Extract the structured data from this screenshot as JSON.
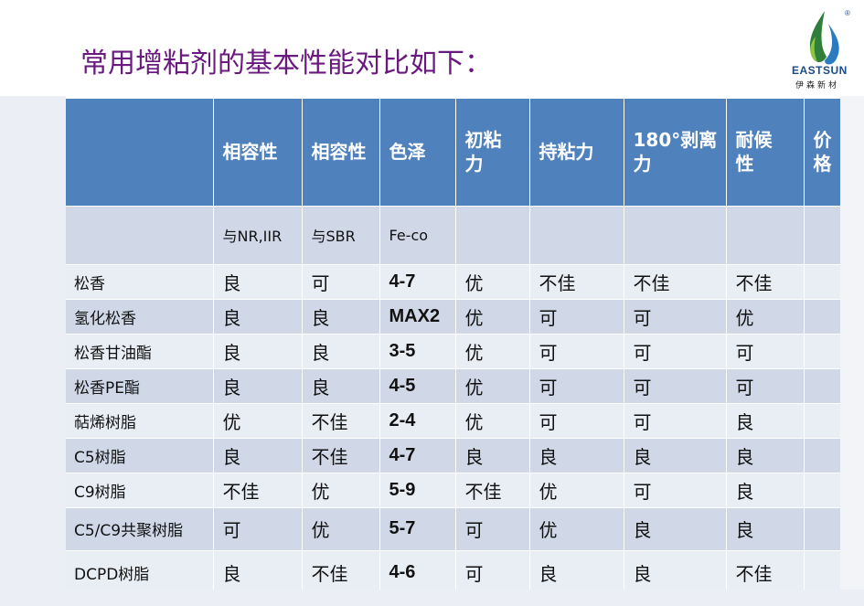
{
  "title": "常用增粘剂的基本性能对比如下：",
  "logo": {
    "brand": "EASTSUN",
    "sub": "伊森新材",
    "reg": "®"
  },
  "table": {
    "headers": [
      "",
      "相容性",
      "相容性",
      "色泽",
      "初粘力",
      "持粘力",
      "180°剥离力",
      "耐候性",
      "价格"
    ],
    "header_lines": [
      [
        ""
      ],
      [
        "相容性"
      ],
      [
        "相容性"
      ],
      [
        "色泽"
      ],
      [
        "初粘",
        "力"
      ],
      [
        "持粘力"
      ],
      [
        "180°剥离",
        "力"
      ],
      [
        "耐候",
        "性"
      ],
      [
        "价",
        "格"
      ]
    ],
    "subheaders": [
      "",
      "与NR,IIR",
      "与SBR",
      "Fe-co",
      "",
      "",
      "",
      "",
      ""
    ],
    "rows": [
      [
        "松香",
        "良",
        "可",
        "4-7",
        "优",
        "不佳",
        "不佳",
        "不佳",
        ""
      ],
      [
        "氢化松香",
        "良",
        "良",
        "MAX2",
        "优",
        "可",
        "可",
        "优",
        ""
      ],
      [
        "松香甘油酯",
        "良",
        "良",
        "3-5",
        "优",
        "可",
        "可",
        "可",
        ""
      ],
      [
        "松香PE酯",
        "良",
        "良",
        "4-5",
        "优",
        "可",
        "可",
        "可",
        ""
      ],
      [
        "萜烯树脂",
        "优",
        "不佳",
        "2-4",
        "优",
        "可",
        "可",
        "良",
        ""
      ],
      [
        "C5树脂",
        "良",
        "不佳",
        "4-7",
        "良",
        "良",
        "良",
        "良",
        ""
      ],
      [
        "C9树脂",
        "不佳",
        "优",
        "5-9",
        "不佳",
        "优",
        "可",
        "良",
        ""
      ],
      [
        "C5/C9共聚树脂",
        "可",
        "优",
        "5-7",
        "可",
        "优",
        "良",
        "良",
        ""
      ],
      [
        "DCPD树脂",
        "良",
        "不佳",
        "4-6",
        "可",
        "良",
        "良",
        "不佳",
        ""
      ]
    ]
  }
}
